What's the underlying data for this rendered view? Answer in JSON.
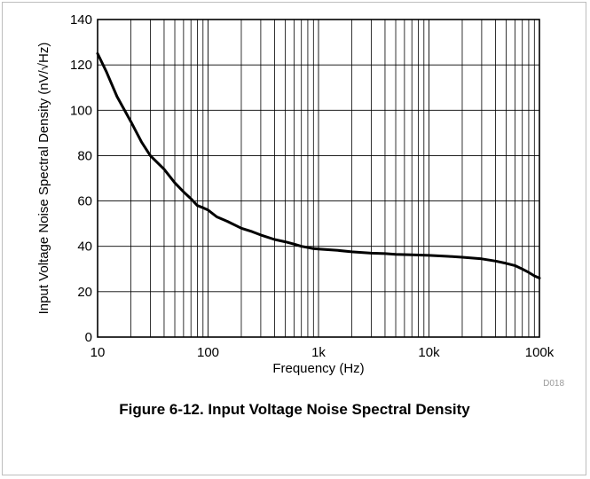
{
  "chart_data": {
    "type": "line",
    "title": "",
    "xlabel": "Frequency (Hz)",
    "ylabel": "Input Voltage Noise Spectral Density (nV/√Hz)",
    "x_scale": "log",
    "xlim": [
      10,
      100000
    ],
    "ylim": [
      0,
      140
    ],
    "x_ticks": [
      10,
      100,
      1000,
      10000,
      100000
    ],
    "x_tick_labels": [
      "10",
      "100",
      "1k",
      "10k",
      "100k"
    ],
    "y_ticks": [
      0,
      20,
      40,
      60,
      80,
      100,
      120,
      140
    ],
    "y_tick_labels": [
      "0",
      "20",
      "40",
      "60",
      "80",
      "100",
      "120",
      "140"
    ],
    "grid": true,
    "legend": "none",
    "line_color": "#000000",
    "series": [
      {
        "x": [
          10,
          12,
          15,
          20,
          25,
          30,
          40,
          50,
          60,
          70,
          80,
          90,
          100,
          120,
          150,
          200,
          250,
          300,
          400,
          500,
          600,
          700,
          800,
          900,
          1000,
          1500,
          2000,
          3000,
          4000,
          5000,
          7000,
          10000,
          15000,
          20000,
          30000,
          40000,
          50000,
          60000,
          70000,
          80000,
          90000,
          100000
        ],
        "y": [
          125,
          117,
          106,
          95,
          86,
          80,
          74,
          68,
          64,
          61,
          58,
          57,
          56,
          53,
          51,
          48,
          46.5,
          45,
          43,
          42,
          41,
          40,
          39.5,
          39,
          38.8,
          38.2,
          37.6,
          37,
          36.8,
          36.5,
          36.3,
          36,
          35.6,
          35.2,
          34.5,
          33.5,
          32.5,
          31.5,
          30,
          28.5,
          27,
          26
        ]
      }
    ]
  },
  "figure_code": "D018",
  "caption": "Figure 6-12. Input Voltage Noise Spectral Density"
}
